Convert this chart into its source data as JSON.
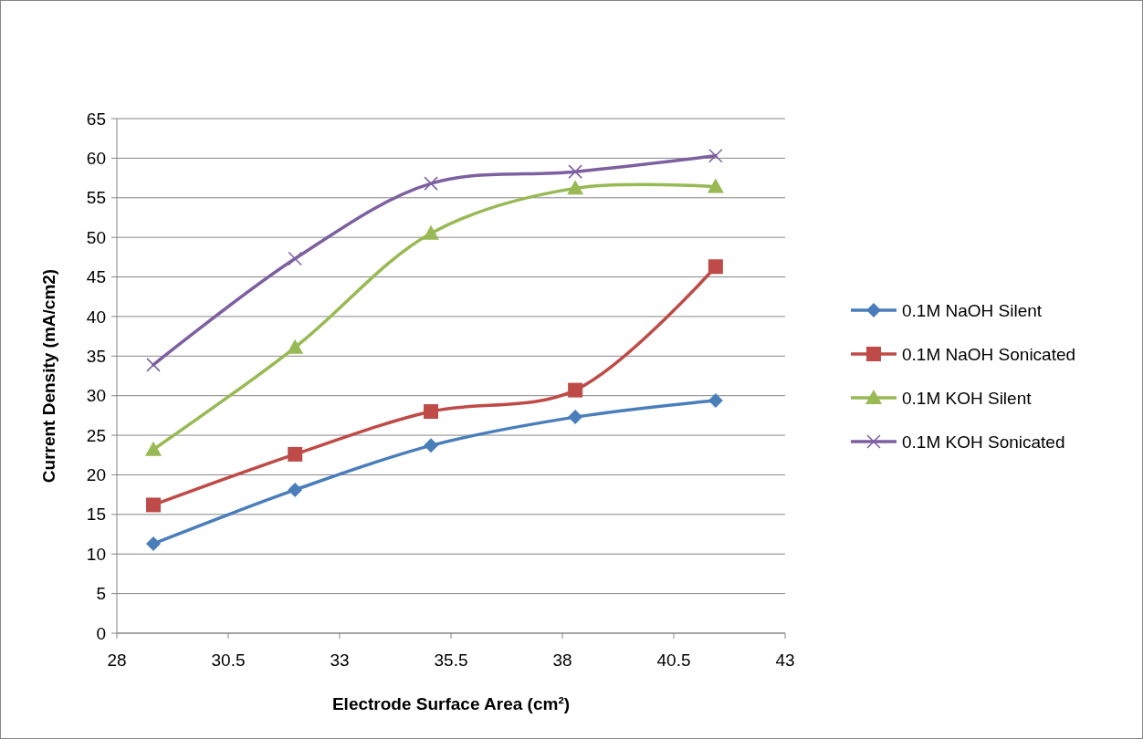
{
  "chart_data": {
    "type": "line",
    "xlabel": "Electrode Surface Area (cm²)",
    "ylabel": "Current Density (mA/cm2)",
    "x": [
      28.82,
      32.0,
      35.05,
      38.29,
      41.44
    ],
    "series": [
      {
        "name": "0.1M NaOH Silent",
        "color": "#4a7ebb",
        "marker": "diamond",
        "values": [
          11.3,
          18.1,
          23.7,
          27.3,
          29.4
        ]
      },
      {
        "name": "0.1M NaOH Sonicated",
        "color": "#be4b48",
        "marker": "square",
        "values": [
          16.2,
          22.6,
          28.0,
          30.7,
          46.3
        ]
      },
      {
        "name": "0.1M KOH Silent",
        "color": "#98b954",
        "marker": "triangle",
        "values": [
          23.2,
          36.1,
          50.5,
          56.2,
          56.4
        ]
      },
      {
        "name": "0.1M KOH Sonicated",
        "color": "#7d60a0",
        "marker": "cross",
        "values": [
          33.9,
          47.3,
          56.8,
          58.3,
          60.3
        ]
      }
    ],
    "xlim": [
      28,
      43
    ],
    "xticks": [
      28,
      30.5,
      33,
      35.5,
      38,
      40.5,
      43
    ],
    "ylim": [
      0,
      65
    ],
    "yticks": [
      0,
      5,
      10,
      15,
      20,
      25,
      30,
      35,
      40,
      45,
      50,
      55,
      60,
      65
    ],
    "grid": "y",
    "legend": "right",
    "line_style": "solid"
  }
}
